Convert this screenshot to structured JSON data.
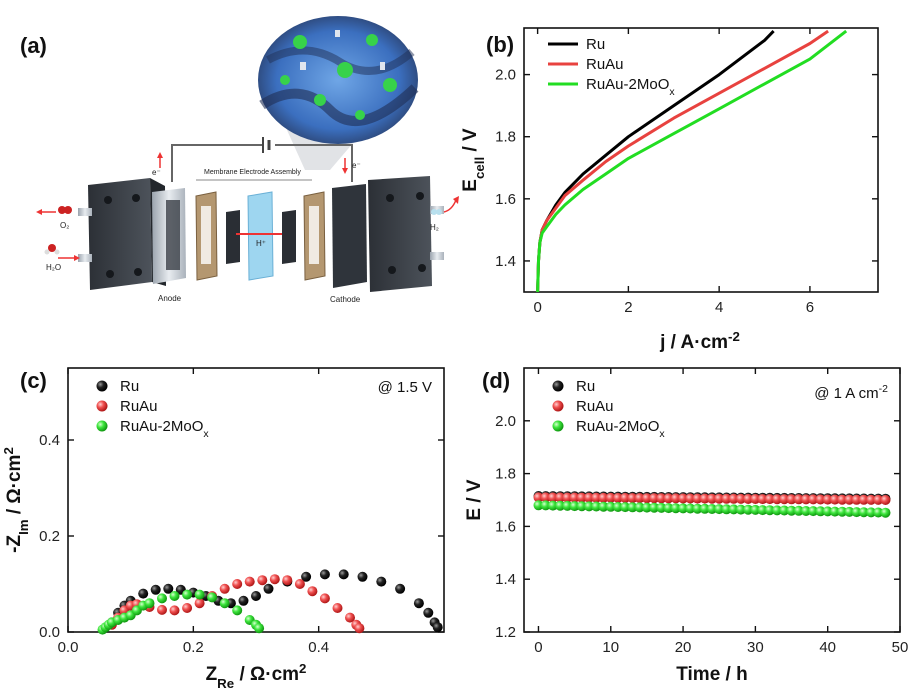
{
  "panel_labels": {
    "a": "(a)",
    "b": "(b)",
    "c": "(c)",
    "d": "(d)"
  },
  "schematic": {
    "membrane": "Membrane Electrode Assembly",
    "anode": "Anode",
    "cathode": "Cathode",
    "o2": "O₂",
    "h2o": "H₂O",
    "h2": "H₂",
    "e_left": "e⁻",
    "e_right": "e⁻",
    "proton": "H⁺"
  },
  "colors": {
    "Ru": "#000000",
    "RuAu": "#e8423f",
    "RuAu-2MoOx": "#22dd22"
  },
  "chart_data": [
    {
      "panel": "b",
      "type": "line",
      "xlabel_main": "j / A·cm",
      "xlabel_sup": "-2",
      "ylabel_main": "E",
      "ylabel_sub": "cell",
      "ylabel_rest": " / V",
      "xlim": [
        -0.3,
        7.5
      ],
      "ylim": [
        1.3,
        2.15
      ],
      "xticks": [
        "0",
        "2",
        "4",
        "6"
      ],
      "yticks": [
        "1.4",
        "1.6",
        "1.8",
        "2.0"
      ],
      "legend_position": "top-left",
      "series": [
        {
          "name": "Ru",
          "legend_main": "Ru",
          "legend_sub": "",
          "color": "#000000",
          "x": [
            0,
            0.02,
            0.05,
            0.1,
            0.2,
            0.4,
            0.6,
            1.0,
            1.5,
            2.0,
            3.0,
            4.0,
            5.0,
            5.2
          ],
          "y": [
            1.3,
            1.4,
            1.46,
            1.5,
            1.53,
            1.58,
            1.62,
            1.68,
            1.74,
            1.8,
            1.9,
            2.0,
            2.11,
            2.14
          ]
        },
        {
          "name": "RuAu",
          "legend_main": "RuAu",
          "legend_sub": "",
          "color": "#e8423f",
          "x": [
            0,
            0.02,
            0.05,
            0.1,
            0.2,
            0.4,
            0.6,
            1.0,
            1.5,
            2.0,
            3.0,
            4.0,
            5.0,
            6.0,
            6.4
          ],
          "y": [
            1.3,
            1.4,
            1.46,
            1.5,
            1.53,
            1.57,
            1.61,
            1.66,
            1.72,
            1.77,
            1.86,
            1.94,
            2.02,
            2.1,
            2.14
          ]
        },
        {
          "name": "RuAu-2MoOx",
          "legend_main": "RuAu-2MoO",
          "legend_sub": "x",
          "color": "#22dd22",
          "x": [
            0,
            0.02,
            0.05,
            0.1,
            0.2,
            0.4,
            0.6,
            1.0,
            1.5,
            2.0,
            3.0,
            4.0,
            5.0,
            6.0,
            6.8
          ],
          "y": [
            1.3,
            1.4,
            1.46,
            1.49,
            1.51,
            1.55,
            1.58,
            1.63,
            1.68,
            1.73,
            1.81,
            1.89,
            1.97,
            2.05,
            2.14
          ]
        }
      ]
    },
    {
      "panel": "c",
      "type": "scatter",
      "xlabel_main": "Z",
      "xlabel_sub": "Re",
      "xlabel_rest": " / Ω·cm",
      "xlabel_sup": "2",
      "ylabel_main": "-Z",
      "ylabel_sub": "Im",
      "ylabel_rest": " / Ω·cm",
      "ylabel_sup": "2",
      "xlim": [
        0,
        0.6
      ],
      "ylim": [
        0,
        0.55
      ],
      "xticks": [
        "0.0",
        "0.2",
        "0.4"
      ],
      "yticks": [
        "0.0",
        "0.2",
        "0.4"
      ],
      "annotation": "@ 1.5 V",
      "legend_position": "top-left",
      "series": [
        {
          "name": "Ru",
          "legend_main": "Ru",
          "legend_sub": "",
          "color": "#000000",
          "x": [
            0.07,
            0.08,
            0.09,
            0.1,
            0.12,
            0.14,
            0.16,
            0.18,
            0.2,
            0.22,
            0.24,
            0.26,
            0.28,
            0.3,
            0.32,
            0.35,
            0.38,
            0.41,
            0.44,
            0.47,
            0.5,
            0.53,
            0.56,
            0.575,
            0.585,
            0.59
          ],
          "y": [
            0.02,
            0.04,
            0.055,
            0.065,
            0.08,
            0.088,
            0.09,
            0.088,
            0.082,
            0.075,
            0.065,
            0.06,
            0.065,
            0.075,
            0.09,
            0.105,
            0.115,
            0.12,
            0.12,
            0.115,
            0.105,
            0.09,
            0.06,
            0.04,
            0.02,
            0.01
          ]
        },
        {
          "name": "RuAu",
          "legend_main": "RuAu",
          "legend_sub": "",
          "color": "#e8423f",
          "x": [
            0.07,
            0.08,
            0.09,
            0.1,
            0.11,
            0.13,
            0.15,
            0.17,
            0.19,
            0.21,
            0.23,
            0.25,
            0.27,
            0.29,
            0.31,
            0.33,
            0.35,
            0.37,
            0.39,
            0.41,
            0.43,
            0.45,
            0.46,
            0.465
          ],
          "y": [
            0.015,
            0.03,
            0.045,
            0.055,
            0.058,
            0.052,
            0.046,
            0.045,
            0.05,
            0.06,
            0.075,
            0.09,
            0.1,
            0.105,
            0.108,
            0.11,
            0.108,
            0.1,
            0.085,
            0.07,
            0.05,
            0.03,
            0.015,
            0.008
          ]
        },
        {
          "name": "RuAu-2MoOx",
          "legend_main": "RuAu-2MoO",
          "legend_sub": "x",
          "color": "#22dd22",
          "x": [
            0.055,
            0.06,
            0.065,
            0.07,
            0.08,
            0.09,
            0.1,
            0.11,
            0.12,
            0.13,
            0.15,
            0.17,
            0.19,
            0.21,
            0.23,
            0.25,
            0.27,
            0.29,
            0.3,
            0.305
          ],
          "y": [
            0.005,
            0.01,
            0.015,
            0.02,
            0.025,
            0.03,
            0.035,
            0.045,
            0.055,
            0.06,
            0.07,
            0.075,
            0.078,
            0.078,
            0.072,
            0.06,
            0.045,
            0.025,
            0.015,
            0.008
          ]
        }
      ]
    },
    {
      "panel": "d",
      "type": "scatter",
      "xlabel_main": "Time / h",
      "ylabel_main": "E / V",
      "xlim": [
        -2,
        50
      ],
      "ylim": [
        1.2,
        2.2
      ],
      "xticks": [
        "0",
        "10",
        "20",
        "30",
        "40",
        "50"
      ],
      "yticks": [
        "1.2",
        "1.4",
        "1.6",
        "1.8",
        "2.0"
      ],
      "annotation_main": "@ 1 A cm",
      "annotation_sup": "-2",
      "legend_position": "top-left",
      "series": [
        {
          "name": "Ru",
          "legend_main": "Ru",
          "legend_sub": "",
          "color": "#000000",
          "x_start": 0,
          "x_end": 48,
          "x_step": 1,
          "y_start": 1.715,
          "y_end": 1.705
        },
        {
          "name": "RuAu",
          "legend_main": "RuAu",
          "legend_sub": "",
          "color": "#e8423f",
          "x_start": 0,
          "x_end": 48,
          "x_step": 1,
          "y_start": 1.71,
          "y_end": 1.7
        },
        {
          "name": "RuAu-2MoOx",
          "legend_main": "RuAu-2MoO",
          "legend_sub": "x",
          "color": "#22dd22",
          "x_start": 0,
          "x_end": 48,
          "x_step": 1,
          "y_start": 1.68,
          "y_end": 1.652
        }
      ]
    }
  ]
}
